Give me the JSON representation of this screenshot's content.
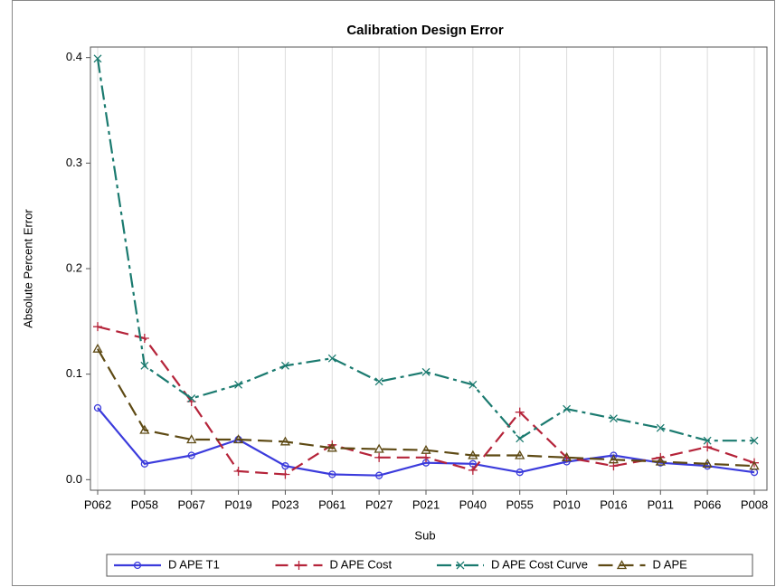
{
  "chart_data": {
    "type": "line",
    "title": "Calibration Design Error",
    "x_label": "Sub",
    "y_label": "Absolute Percent Error",
    "categories": [
      "P062",
      "P058",
      "P067",
      "P019",
      "P023",
      "P061",
      "P027",
      "P021",
      "P040",
      "P055",
      "P010",
      "P016",
      "P011",
      "P066",
      "P008"
    ],
    "series": [
      {
        "name": "D APE T1",
        "color": "#3b3bdc",
        "marker": "circle",
        "values": [
          0.068,
          0.015,
          0.023,
          0.038,
          0.013,
          0.005,
          0.004,
          0.016,
          0.015,
          0.007,
          0.017,
          0.023,
          0.016,
          0.013,
          0.007
        ]
      },
      {
        "name": "D APE Cost",
        "color": "#b5243a",
        "marker": "plus",
        "values": [
          0.145,
          0.134,
          0.074,
          0.008,
          0.005,
          0.033,
          0.021,
          0.021,
          0.009,
          0.064,
          0.021,
          0.013,
          0.021,
          0.031,
          0.016
        ]
      },
      {
        "name": "D APE Cost Curve",
        "color": "#1a7a6f",
        "marker": "x",
        "values": [
          0.399,
          0.108,
          0.077,
          0.09,
          0.108,
          0.115,
          0.093,
          0.102,
          0.09,
          0.039,
          0.067,
          0.058,
          0.049,
          0.037,
          0.037
        ]
      },
      {
        "name": "D APE",
        "color": "#5e4a14",
        "marker": "triangle",
        "values": [
          0.124,
          0.047,
          0.038,
          0.038,
          0.036,
          0.03,
          0.029,
          0.028,
          0.023,
          0.023,
          0.021,
          0.019,
          0.017,
          0.015,
          0.013
        ]
      }
    ],
    "ylim": [
      -0.01,
      0.41
    ],
    "yticks": [
      {
        "value": 0,
        "label": "0.0"
      },
      0.1,
      0.2,
      0.3,
      0.4
    ],
    "grid": true,
    "legend": "bottom"
  }
}
